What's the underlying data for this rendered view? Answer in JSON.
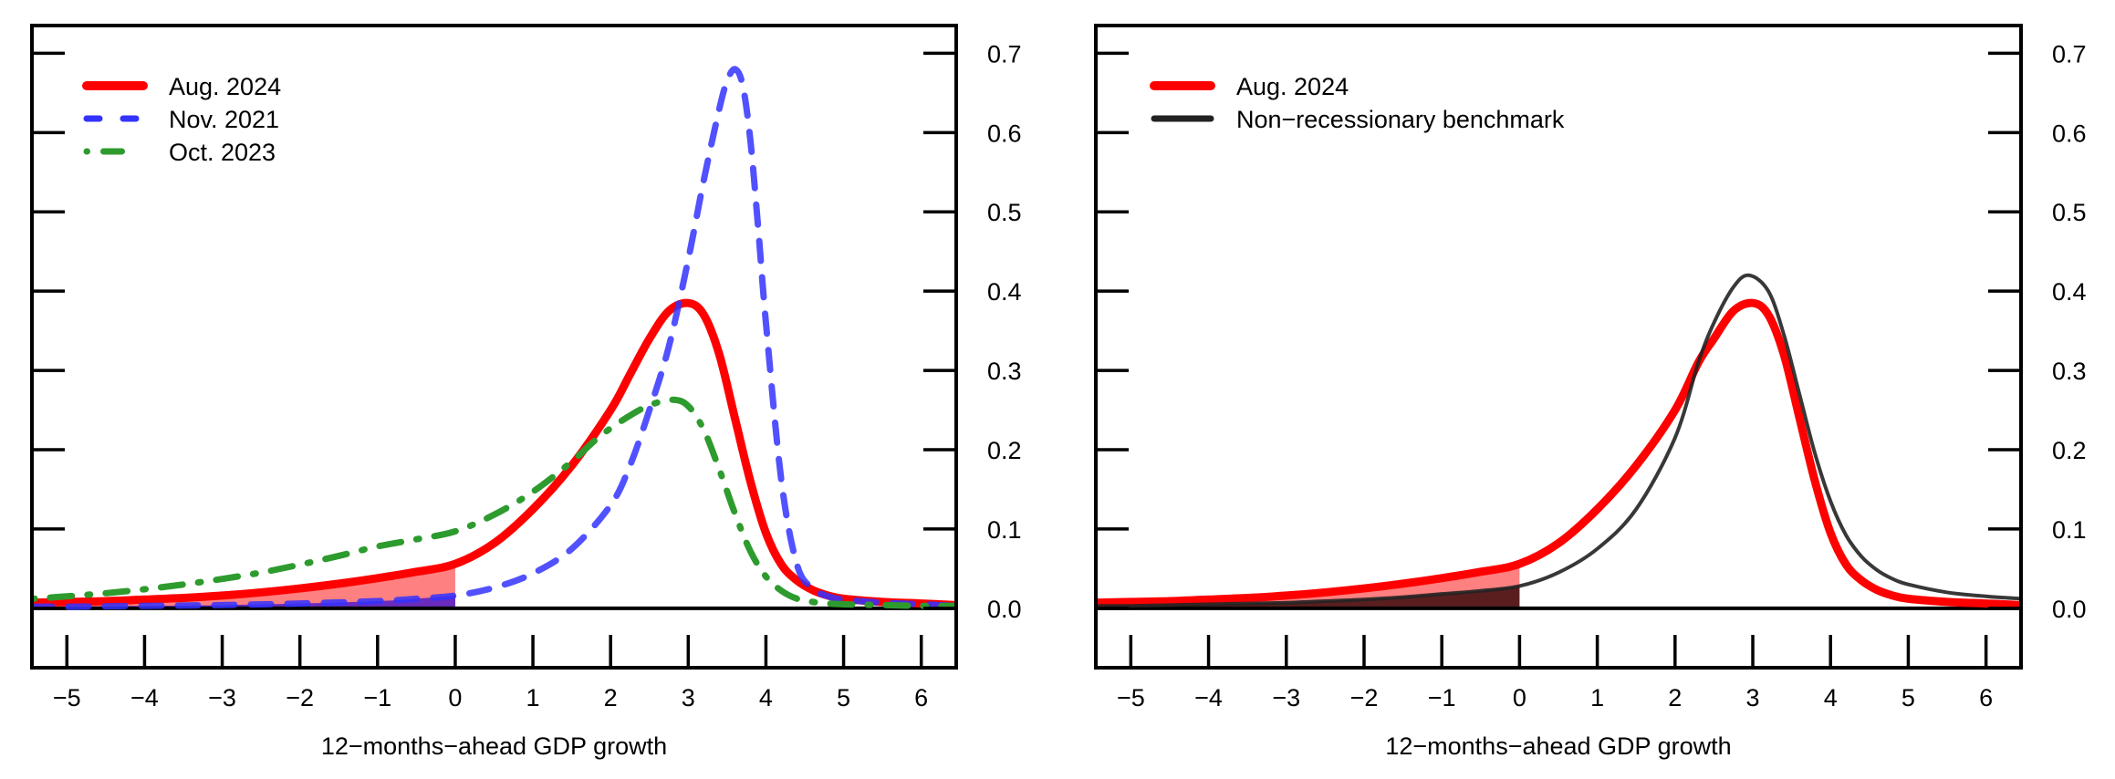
{
  "chart_data": [
    {
      "type": "line",
      "panel": "left",
      "title": "",
      "xlabel": "12−months−ahead GDP growth",
      "ylabel": "",
      "xlim": [
        -5.45,
        6.45
      ],
      "ylim": [
        -0.075,
        0.735
      ],
      "xticks": [
        -5,
        -4,
        -3,
        -2,
        -1,
        0,
        1,
        2,
        3,
        4,
        5,
        6
      ],
      "xtick_labels": [
        "−5",
        "−4",
        "−3",
        "−2",
        "−1",
        "0",
        "1",
        "2",
        "3",
        "4",
        "5",
        "6"
      ],
      "yticks": [
        0.0,
        0.1,
        0.2,
        0.3,
        0.4,
        0.5,
        0.6,
        0.7
      ],
      "ytick_labels": [
        "0.0",
        "0.1",
        "0.2",
        "0.3",
        "0.4",
        "0.5",
        "0.6",
        "0.7"
      ],
      "y_axis_side": "right",
      "grid": false,
      "legend_position": "top-left",
      "shade_below_x": 0,
      "series": [
        {
          "name": "Aug. 2024",
          "color": "#ff0000",
          "style": "solid",
          "fill_color": "#ff8080",
          "x": [
            -5.45,
            -5,
            -4.5,
            -4,
            -3.5,
            -3,
            -2.5,
            -2,
            -1.5,
            -1,
            -0.5,
            0,
            0.5,
            1,
            1.5,
            2,
            2.25,
            2.5,
            2.75,
            3.0,
            3.2,
            3.4,
            3.6,
            3.8,
            4.0,
            4.2,
            4.4,
            4.6,
            4.8,
            5.0,
            5.5,
            6.0,
            6.45
          ],
          "y": [
            0.007,
            0.008,
            0.009,
            0.011,
            0.013,
            0.016,
            0.02,
            0.025,
            0.031,
            0.038,
            0.046,
            0.056,
            0.082,
            0.125,
            0.18,
            0.25,
            0.295,
            0.34,
            0.375,
            0.385,
            0.37,
            0.32,
            0.24,
            0.16,
            0.095,
            0.055,
            0.035,
            0.023,
            0.016,
            0.012,
            0.008,
            0.006,
            0.004
          ]
        },
        {
          "name": "Nov. 2021",
          "color": "#3333ff",
          "style": "dashed",
          "fill_color": "#6a2bbf",
          "x": [
            -5.45,
            -5,
            -4,
            -3,
            -2,
            -1,
            -0.5,
            0,
            0.5,
            1,
            1.5,
            2,
            2.25,
            2.5,
            2.75,
            3.0,
            3.2,
            3.4,
            3.5,
            3.6,
            3.7,
            3.8,
            3.9,
            4.0,
            4.2,
            4.4,
            4.6,
            4.8,
            5.0,
            5.5,
            6.0,
            6.45
          ],
          "y": [
            0.002,
            0.002,
            0.003,
            0.004,
            0.006,
            0.009,
            0.012,
            0.016,
            0.026,
            0.044,
            0.075,
            0.13,
            0.18,
            0.25,
            0.33,
            0.44,
            0.54,
            0.63,
            0.665,
            0.68,
            0.66,
            0.59,
            0.48,
            0.36,
            0.16,
            0.055,
            0.025,
            0.015,
            0.011,
            0.007,
            0.005,
            0.003
          ]
        },
        {
          "name": "Oct. 2023",
          "color": "#2e9b2e",
          "style": "dotdash",
          "x": [
            -5.45,
            -5,
            -4.5,
            -4,
            -3.5,
            -3,
            -2.5,
            -2,
            -1.5,
            -1,
            -0.5,
            0,
            0.5,
            1,
            1.5,
            1.85,
            2.2,
            2.5,
            2.8,
            3.0,
            3.2,
            3.4,
            3.6,
            3.8,
            4.0,
            4.2,
            4.4,
            4.6,
            4.8,
            5.0,
            5.5,
            6.0,
            6.45
          ],
          "y": [
            0.012,
            0.015,
            0.019,
            0.024,
            0.03,
            0.037,
            0.045,
            0.055,
            0.066,
            0.078,
            0.087,
            0.097,
            0.118,
            0.147,
            0.185,
            0.216,
            0.24,
            0.256,
            0.263,
            0.255,
            0.225,
            0.175,
            0.12,
            0.072,
            0.04,
            0.022,
            0.012,
            0.008,
            0.006,
            0.005,
            0.004,
            0.003,
            0.003
          ]
        }
      ]
    },
    {
      "type": "line",
      "panel": "right",
      "title": "",
      "xlabel": "12−months−ahead GDP growth",
      "ylabel": "",
      "xlim": [
        -5.45,
        6.45
      ],
      "ylim": [
        -0.075,
        0.735
      ],
      "xticks": [
        -5,
        -4,
        -3,
        -2,
        -1,
        0,
        1,
        2,
        3,
        4,
        5,
        6
      ],
      "xtick_labels": [
        "−5",
        "−4",
        "−3",
        "−2",
        "−1",
        "0",
        "1",
        "2",
        "3",
        "4",
        "5",
        "6"
      ],
      "yticks": [
        0.0,
        0.1,
        0.2,
        0.3,
        0.4,
        0.5,
        0.6,
        0.7
      ],
      "ytick_labels": [
        "0.0",
        "0.1",
        "0.2",
        "0.3",
        "0.4",
        "0.5",
        "0.6",
        "0.7"
      ],
      "y_axis_side": "right",
      "grid": false,
      "legend_position": "top-left",
      "shade_below_x": 0,
      "series": [
        {
          "name": "Aug. 2024",
          "color": "#ff0000",
          "style": "solid",
          "fill_color": "#ff8080",
          "x": [
            -5.45,
            -5,
            -4.5,
            -4,
            -3.5,
            -3,
            -2.5,
            -2,
            -1.5,
            -1,
            -0.5,
            0,
            0.5,
            1,
            1.5,
            2,
            2.3,
            2.5,
            2.75,
            3.0,
            3.2,
            3.4,
            3.6,
            3.8,
            4.0,
            4.2,
            4.4,
            4.6,
            4.8,
            5.0,
            5.5,
            6.0,
            6.45
          ],
          "y": [
            0.007,
            0.008,
            0.009,
            0.011,
            0.013,
            0.016,
            0.02,
            0.025,
            0.031,
            0.038,
            0.046,
            0.056,
            0.082,
            0.125,
            0.18,
            0.25,
            0.31,
            0.34,
            0.375,
            0.385,
            0.37,
            0.32,
            0.24,
            0.16,
            0.095,
            0.055,
            0.035,
            0.023,
            0.016,
            0.012,
            0.008,
            0.006,
            0.004
          ]
        },
        {
          "name": "Non−recessionary benchmark",
          "color": "#222222",
          "style": "solid",
          "fill_color": "#5a1e1e",
          "x": [
            -5.45,
            -5,
            -4.5,
            -4,
            -3.5,
            -3,
            -2.5,
            -2,
            -1.5,
            -1,
            -0.5,
            0,
            0.5,
            1,
            1.5,
            2,
            2.3,
            2.5,
            2.75,
            2.95,
            3.2,
            3.4,
            3.6,
            3.8,
            4.0,
            4.2,
            4.4,
            4.6,
            4.8,
            5.0,
            5.5,
            6.0,
            6.45
          ],
          "y": [
            0.003,
            0.003,
            0.004,
            0.005,
            0.006,
            0.007,
            0.009,
            0.011,
            0.014,
            0.018,
            0.022,
            0.028,
            0.045,
            0.075,
            0.125,
            0.215,
            0.31,
            0.36,
            0.405,
            0.42,
            0.4,
            0.345,
            0.27,
            0.195,
            0.135,
            0.092,
            0.065,
            0.048,
            0.037,
            0.03,
            0.02,
            0.015,
            0.012
          ]
        }
      ]
    }
  ]
}
